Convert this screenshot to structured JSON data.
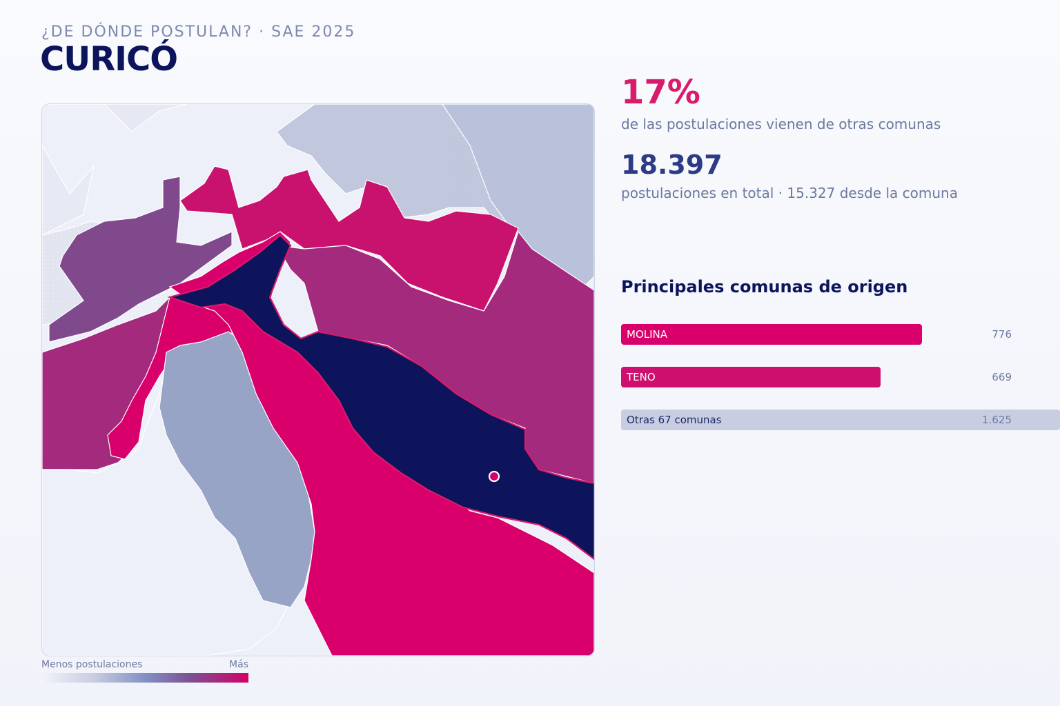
{
  "header": {
    "kicker": "¿DE DÓNDE POSTULAN? · SAE 2025",
    "title": "CURICÓ"
  },
  "stats": {
    "external_pct": "17%",
    "external_desc": "de las postulaciones vienen de otras comunas",
    "total": "18.397",
    "total_desc": "postulaciones en total · 15.327 desde la comuna"
  },
  "origins": {
    "title": "Principales comunas de origen",
    "items": [
      {
        "label": "MOLINA",
        "value": "776",
        "count": 776,
        "color": "#d9006c"
      },
      {
        "label": "TENO",
        "value": "669",
        "count": 669,
        "color": "#cf0f6e"
      },
      {
        "label": "Otras 67 comunas",
        "value": "1.625",
        "count": 1625,
        "color": "#c8cde1"
      }
    ]
  },
  "legend": {
    "low": "Menos postulaciones",
    "high": "Más"
  },
  "map": {
    "highlight_commune": "CURICÓ",
    "colors": {
      "selected": "#0d145c",
      "highest": "#d9006c",
      "high": "#c8126e",
      "mid_high": "#a32a7d",
      "mid": "#7f498c",
      "low": "#98a4c6",
      "lower": "#bfc6da",
      "lowest": "#edf0f8"
    },
    "icons": {
      "center": "location-dot-icon"
    }
  }
}
